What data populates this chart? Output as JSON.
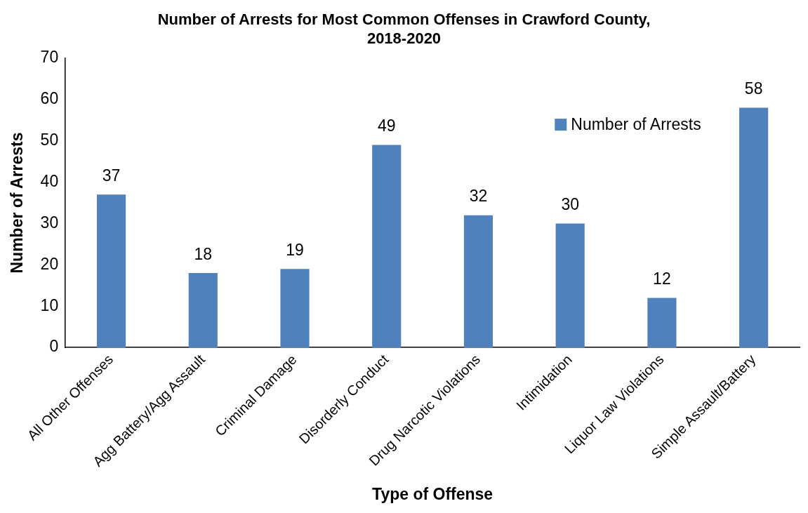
{
  "chart_data": {
    "type": "bar",
    "title": "Number of Arrests for Most Common Offenses in Crawford County, 2018-2020",
    "xlabel": "Type of Offense",
    "ylabel": "Number of Arrests",
    "categories": [
      "All Other Offenses",
      "Agg Battery/Agg Assault",
      "Criminal Damage",
      "Disorderly Conduct",
      "Drug Narcotic Violations",
      "Intimidation",
      "Liquor Law Violations",
      "Simple Assault/Battery"
    ],
    "series": [
      {
        "name": "Number of Arrests",
        "color": "#4f81bd",
        "values": [
          37,
          18,
          19,
          49,
          32,
          30,
          12,
          58
        ]
      }
    ],
    "ylim": [
      0,
      70
    ],
    "yticks": [
      0,
      10,
      20,
      30,
      40,
      50,
      60,
      70
    ],
    "data_labels": true,
    "legend": "top right"
  }
}
